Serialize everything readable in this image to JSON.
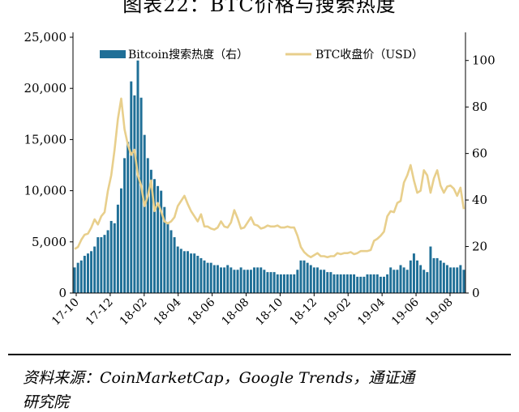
{
  "figure_title": "图表22：BTC价格与搜索热度",
  "source_line1": "资料来源：CoinMarketCap，Google Trends，通证通",
  "source_line2": "研究院",
  "colors": {
    "bar": "#1f6f97",
    "line": "#e8cf8c",
    "axis": "#000000"
  },
  "chart_data": {
    "type": "bar+line",
    "x_tick_labels": [
      "17-10",
      "17-12",
      "18-02",
      "18-04",
      "18-06",
      "18-08",
      "18-10",
      "18-12",
      "19-02",
      "19-04",
      "19-06",
      "19-08"
    ],
    "left_axis": {
      "ticks": [
        "0",
        "5,000",
        "10,000",
        "15,000",
        "20,000",
        "25,000"
      ],
      "ylim": [
        0,
        25000
      ]
    },
    "right_axis": {
      "ticks": [
        "0",
        "20",
        "40",
        "60",
        "80",
        "100"
      ],
      "ylim": [
        0,
        110
      ]
    },
    "legend": {
      "placement": "top",
      "entries": [
        "Bitcoin搜索热度（右）",
        "BTC收盘价（USD）"
      ]
    },
    "series": [
      {
        "name": "Bitcoin搜索热度（右）",
        "kind": "bar",
        "axis": "right",
        "values": [
          11,
          13,
          14,
          16,
          17,
          18,
          20,
          24,
          24,
          25,
          27,
          31,
          30,
          38,
          45,
          58,
          65,
          91,
          85,
          100,
          84,
          68,
          58,
          53,
          49,
          46,
          44,
          37,
          30,
          27,
          24,
          20,
          19,
          18,
          18,
          17,
          17,
          16,
          15,
          14,
          13,
          13,
          12,
          12,
          11,
          11,
          12,
          11,
          10,
          10,
          11,
          10,
          10,
          10,
          11,
          11,
          11,
          10,
          9,
          9,
          9,
          8,
          8,
          8,
          8,
          8,
          8,
          10,
          14,
          14,
          13,
          12,
          11,
          11,
          10,
          10,
          9,
          9,
          8,
          8,
          8,
          8,
          8,
          8,
          8,
          7,
          7,
          7,
          8,
          8,
          8,
          8,
          7,
          7,
          8,
          11,
          10,
          10,
          12,
          11,
          10,
          14,
          17,
          14,
          12,
          10,
          9,
          20,
          15,
          15,
          14,
          13,
          12,
          11,
          11,
          11,
          12,
          10
        ]
      },
      {
        "name": "BTC收盘价（USD）",
        "kind": "line",
        "axis": "left",
        "values": [
          4300,
          4500,
          5200,
          5700,
          5800,
          6400,
          7200,
          6700,
          7500,
          7900,
          10000,
          11500,
          14000,
          17000,
          19000,
          16000,
          14500,
          13500,
          14000,
          11500,
          10500,
          8500,
          9500,
          11000,
          8000,
          8800,
          8000,
          7000,
          6800,
          7000,
          7400,
          8500,
          9000,
          9500,
          8700,
          8000,
          7500,
          7000,
          7700,
          6500,
          6500,
          6300,
          6200,
          6400,
          7000,
          6500,
          6400,
          6900,
          8100,
          7300,
          6300,
          6400,
          6900,
          7400,
          6700,
          6600,
          6300,
          6400,
          6600,
          6500,
          6500,
          6600,
          6400,
          6400,
          6500,
          6400,
          6400,
          5600,
          4500,
          4000,
          3700,
          3500,
          3700,
          3900,
          3600,
          3600,
          3500,
          3600,
          3600,
          3900,
          3800,
          3900,
          3900,
          4000,
          3800,
          3900,
          4100,
          4100,
          4100,
          4200,
          5100,
          5300,
          5600,
          6000,
          7500,
          8000,
          7900,
          8800,
          9000,
          10800,
          11500,
          12500,
          11000,
          9800,
          10000,
          12000,
          11500,
          9800,
          11200,
          12000,
          10500,
          9800,
          10400,
          10500,
          10200,
          9500,
          10300,
          8200
        ]
      }
    ]
  }
}
